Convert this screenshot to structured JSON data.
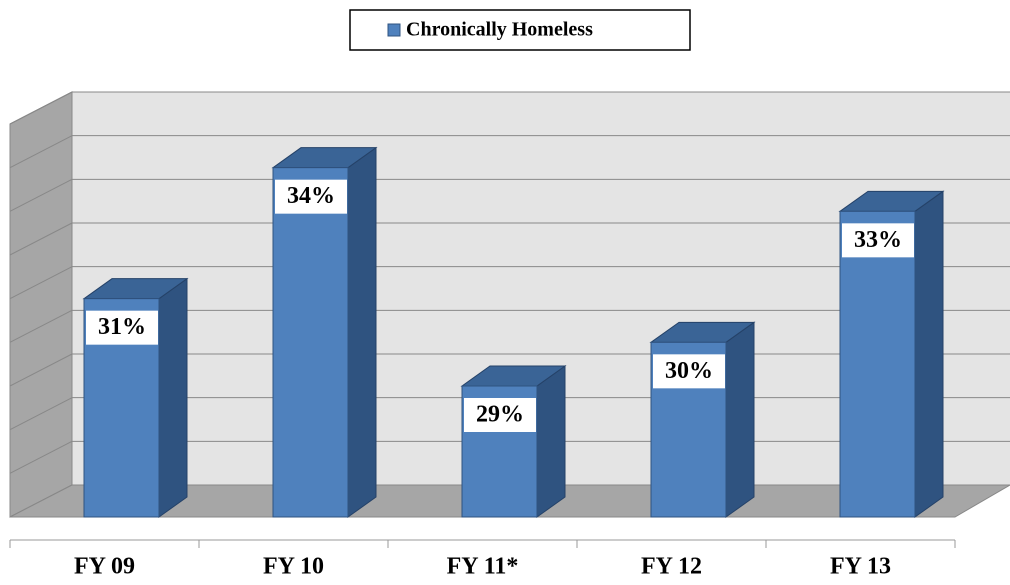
{
  "chart_data": {
    "type": "bar3d",
    "legend": "Chronically Homeless",
    "categories": [
      "FY 09",
      "FY 10",
      "FY 11*",
      "FY 12",
      "FY 13"
    ],
    "series": [
      {
        "name": "Chronically Homeless",
        "color": "#4f81bd",
        "values": [
          31,
          34,
          29,
          30,
          33
        ],
        "value_labels": [
          "31%",
          "34%",
          "29%",
          "30%",
          "33%"
        ]
      }
    ],
    "ylim": [
      26,
      35
    ],
    "yticks": [
      26,
      27,
      28,
      29,
      30,
      31,
      32,
      33,
      34,
      35
    ],
    "grid": true
  }
}
